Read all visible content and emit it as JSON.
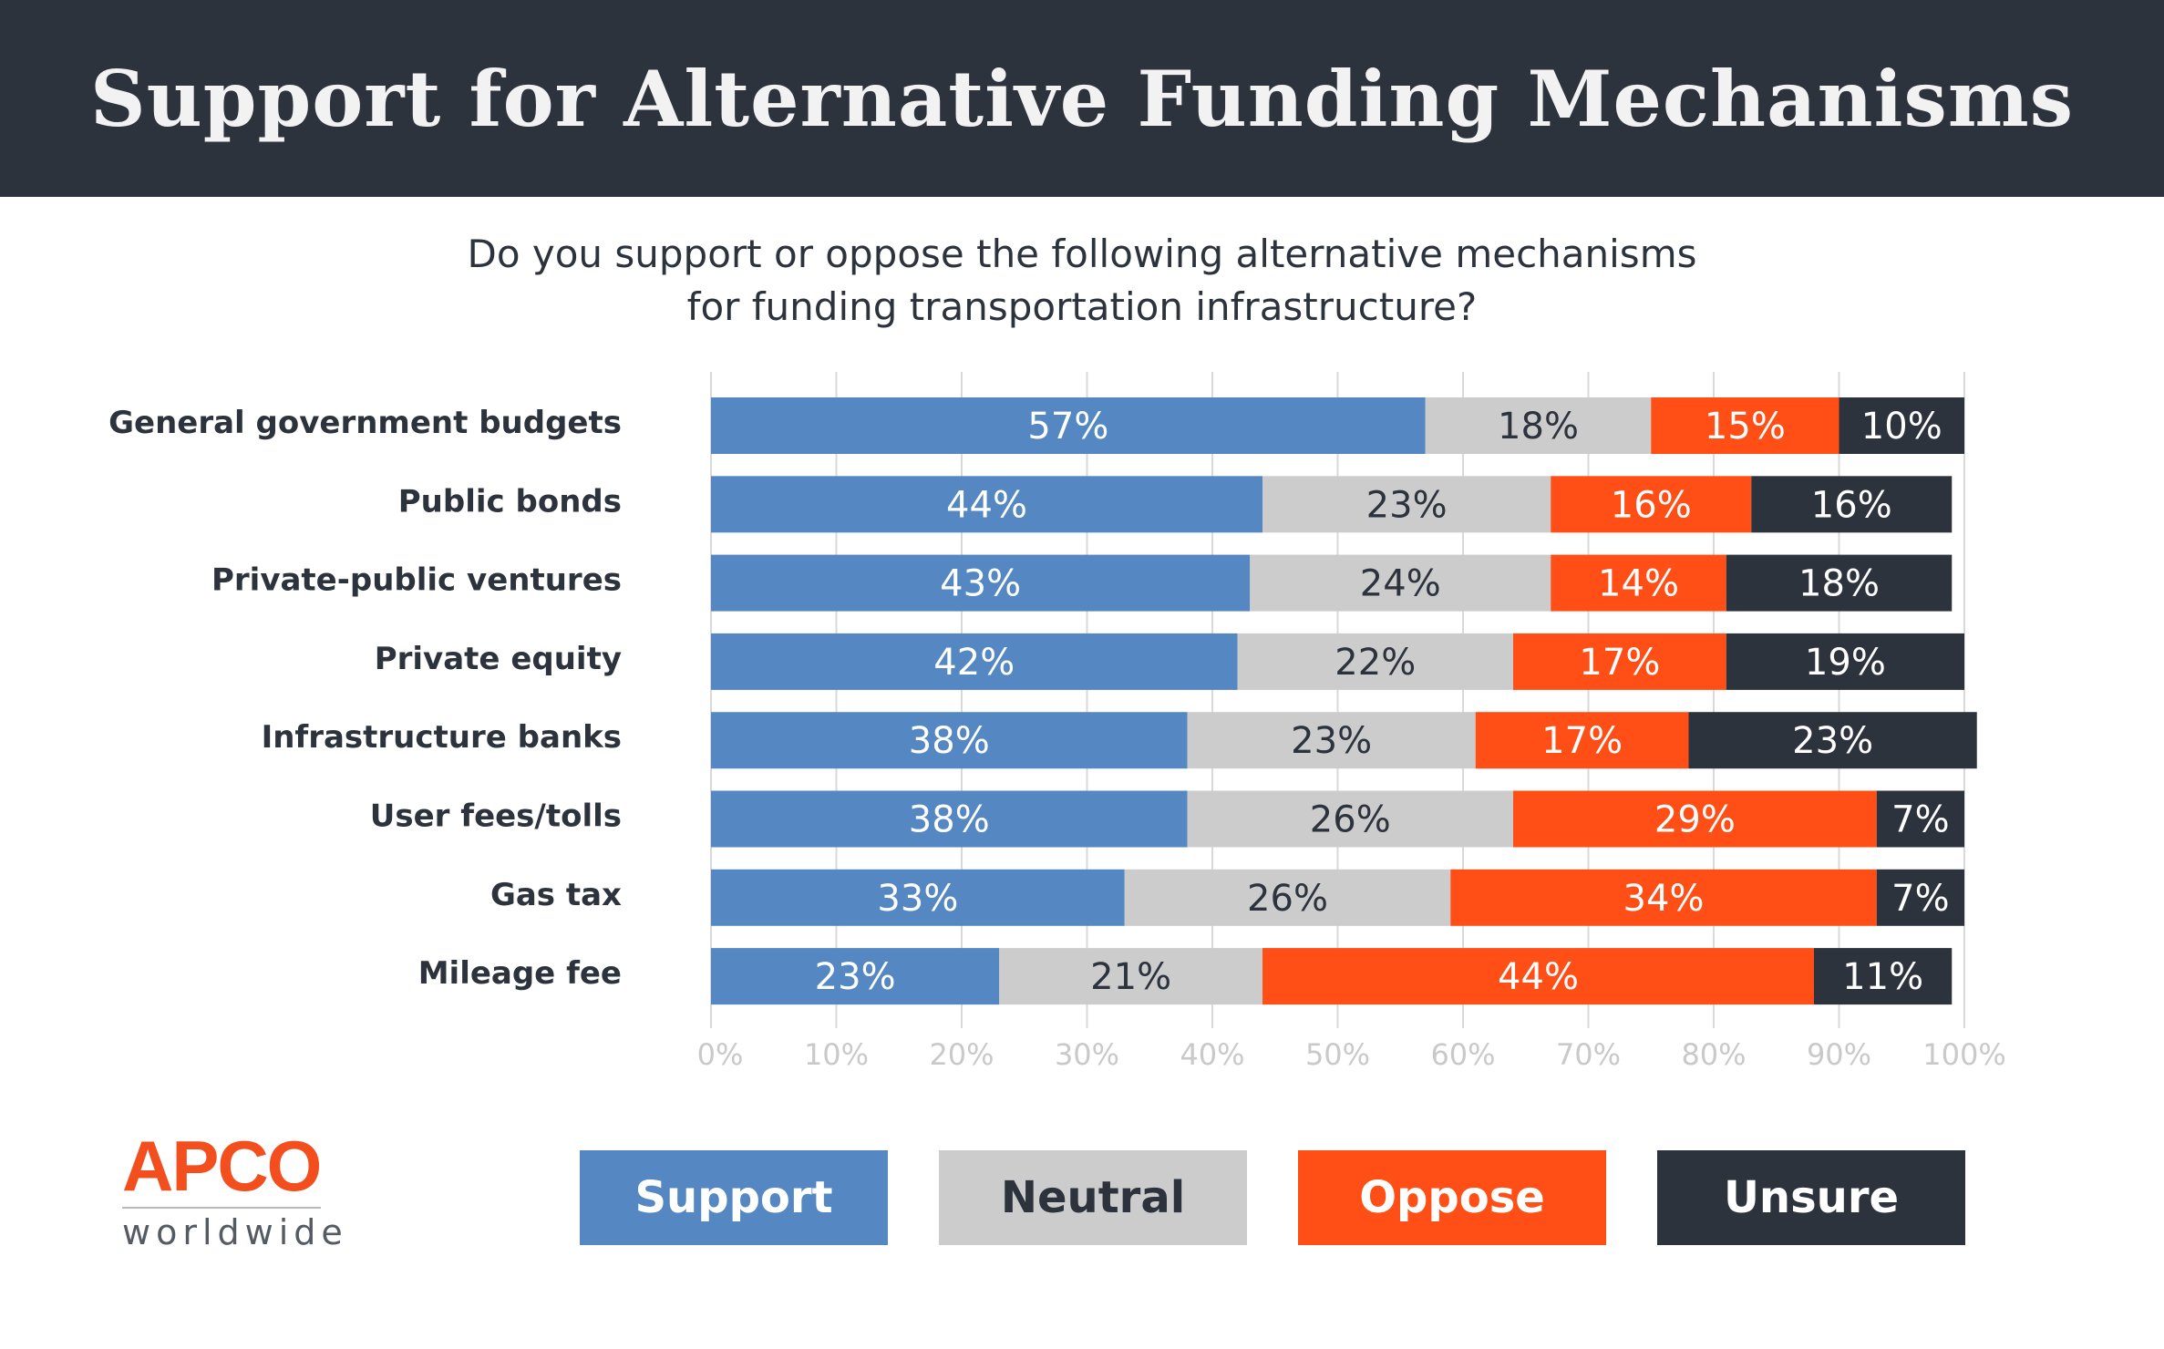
{
  "header": {
    "title": "Support for Alternative Funding Mechanisms"
  },
  "subtitle": {
    "line1": "Do you support or oppose the following alternative mechanisms",
    "line2": "for funding transportation infrastructure?"
  },
  "logo": {
    "brand": "APCO",
    "sub": "worldwide"
  },
  "legend": [
    {
      "label": "Support",
      "color": "#5588c2",
      "text_color": "#ffffff"
    },
    {
      "label": "Neutral",
      "color": "#cccccc",
      "text_color": "#2d333d"
    },
    {
      "label": "Oppose",
      "color": "#ff4f17",
      "text_color": "#ffffff"
    },
    {
      "label": "Unsure",
      "color": "#2d333d",
      "text_color": "#ffffff"
    }
  ],
  "chart_data": {
    "type": "bar",
    "orientation": "horizontal",
    "stacked": true,
    "title": "Support for Alternative Funding Mechanisms",
    "xlim": [
      0,
      100
    ],
    "x_ticks": [
      "0%",
      "10%",
      "20%",
      "30%",
      "40%",
      "50%",
      "60%",
      "70%",
      "80%",
      "90%",
      "100%"
    ],
    "grid": true,
    "legend_position": "bottom",
    "categories": [
      "General government budgets",
      "Public bonds",
      "Private-public ventures",
      "Private equity",
      "Infrastructure banks",
      "User fees/tolls",
      "Gas tax",
      "Mileage fee"
    ],
    "series": [
      {
        "name": "Support",
        "color": "#5588c2",
        "label_color": "#ffffff",
        "values": [
          57,
          44,
          43,
          42,
          38,
          38,
          33,
          23
        ]
      },
      {
        "name": "Neutral",
        "color": "#cccccc",
        "label_color": "#2d333d",
        "values": [
          18,
          23,
          24,
          22,
          23,
          26,
          26,
          21
        ]
      },
      {
        "name": "Oppose",
        "color": "#ff4f17",
        "label_color": "#ffffff",
        "values": [
          15,
          16,
          14,
          17,
          17,
          29,
          34,
          44
        ]
      },
      {
        "name": "Unsure",
        "color": "#2d333d",
        "label_color": "#ffffff",
        "values": [
          10,
          16,
          18,
          19,
          23,
          7,
          7,
          11
        ]
      }
    ]
  }
}
